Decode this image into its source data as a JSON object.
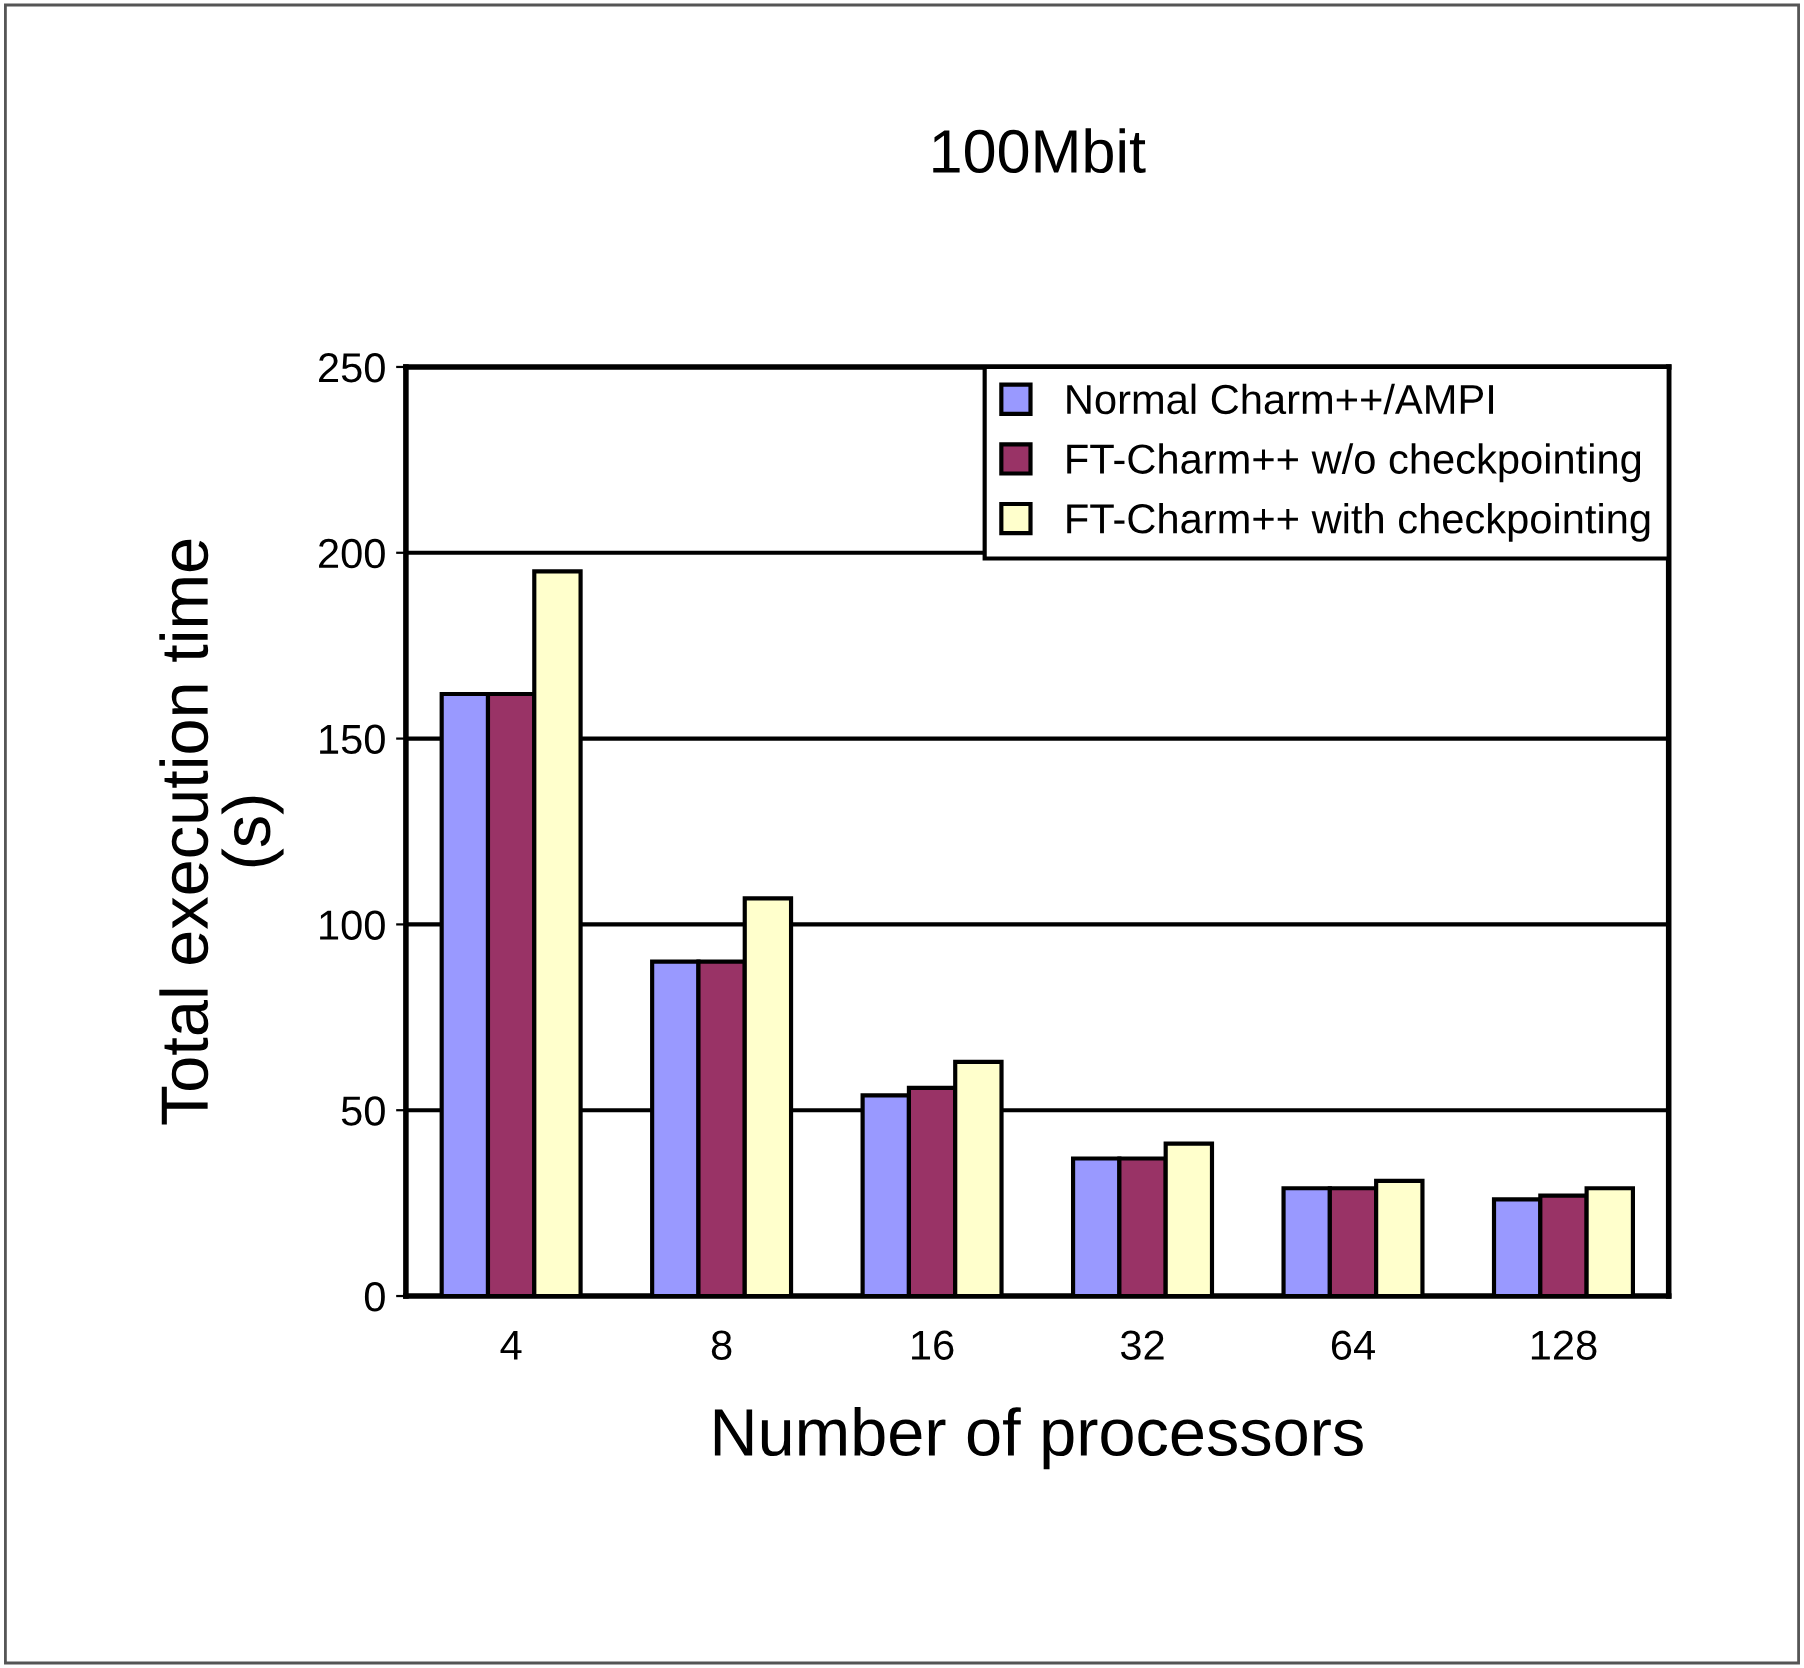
{
  "chart_data": {
    "type": "bar",
    "title": "100Mbit",
    "xlabel": "Number of processors",
    "ylabel": "Total execution time\n(s)",
    "categories": [
      "4",
      "8",
      "16",
      "32",
      "64",
      "128"
    ],
    "series": [
      {
        "name": "Normal Charm++/AMPI",
        "color": "#9999ff",
        "values": [
          162,
          90,
          54,
          37,
          29,
          26
        ]
      },
      {
        "name": "FT-Charm++ w/o checkpointing",
        "color": "#993366",
        "values": [
          162,
          90,
          56,
          37,
          29,
          27
        ]
      },
      {
        "name": "FT-Charm++ with checkpointing",
        "color": "#ffffcc",
        "values": [
          195,
          107,
          63,
          41,
          31,
          29
        ]
      }
    ],
    "ylim": [
      0,
      250
    ],
    "yticks": [
      0,
      50,
      100,
      150,
      200,
      250
    ],
    "grid": "y",
    "legend": "top right"
  }
}
